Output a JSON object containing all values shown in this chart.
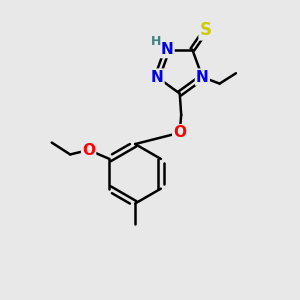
{
  "bg_color": "#e8e8e8",
  "atom_colors": {
    "N": "#0000ee",
    "S": "#cccc00",
    "O": "#ff0000",
    "H": "#408080"
  },
  "bond_color": "#000000",
  "bond_width": 1.8,
  "font_size": 11,
  "font_size_H": 9
}
